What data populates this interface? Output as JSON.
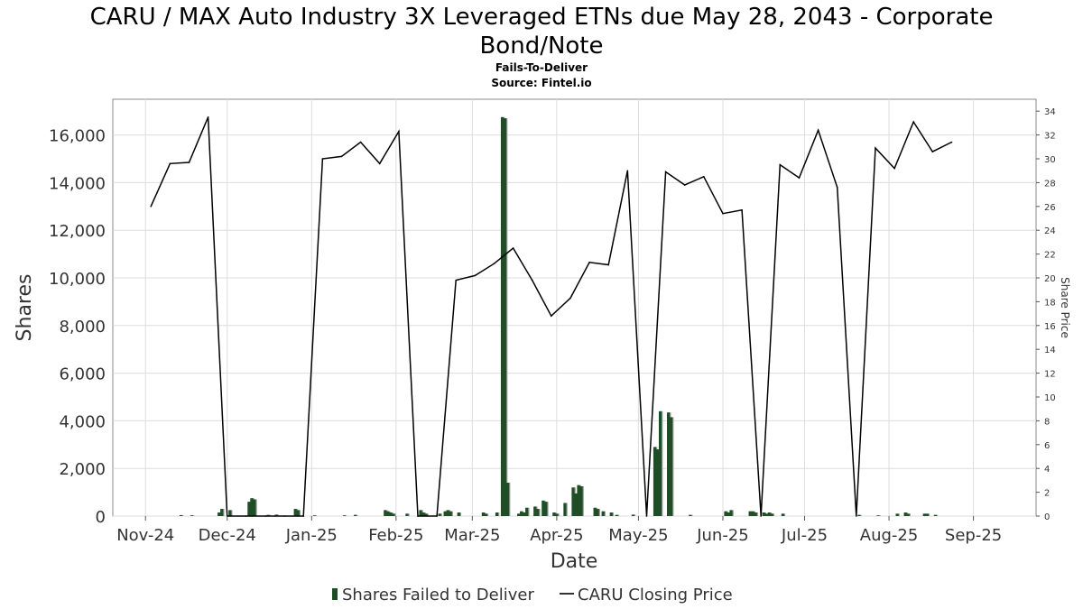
{
  "chart_data": {
    "type": "bar",
    "title_line1": "CARU / MAX Auto Industry 3X Leveraged ETNs due May 28, 2043 - Corporate",
    "title_line2": "Bond/Note",
    "subtitle": "Fails-To-Deliver",
    "source": "Source: Fintel.io",
    "xlabel": "Date",
    "ylabel_left": "Shares",
    "ylabel_right": "Share Price",
    "ylim_left": [
      0,
      17500
    ],
    "ylim_right": [
      0,
      35
    ],
    "xlim": [
      "2024-10-20",
      "2025-09-24"
    ],
    "grid": true,
    "legend_position": "bottom",
    "colors": {
      "bar": "#1e4d26",
      "bar_shadow": "#9a9a9a",
      "line": "#000000",
      "legend_bar": "#1e4d26"
    },
    "left_ticks": [
      {
        "value": 0,
        "label": "0"
      },
      {
        "value": 2000,
        "label": "2,000"
      },
      {
        "value": 4000,
        "label": "4,000"
      },
      {
        "value": 6000,
        "label": "6,000"
      },
      {
        "value": 8000,
        "label": "8,000"
      },
      {
        "value": 10000,
        "label": "10,000"
      },
      {
        "value": 12000,
        "label": "12,000"
      },
      {
        "value": 14000,
        "label": "14,000"
      },
      {
        "value": 16000,
        "label": "16,000"
      }
    ],
    "right_ticks": [
      {
        "value": 0,
        "label": "0"
      },
      {
        "value": 2,
        "label": "2"
      },
      {
        "value": 4,
        "label": "4"
      },
      {
        "value": 6,
        "label": "6"
      },
      {
        "value": 8,
        "label": "8"
      },
      {
        "value": 10,
        "label": "10"
      },
      {
        "value": 12,
        "label": "12"
      },
      {
        "value": 14,
        "label": "14"
      },
      {
        "value": 16,
        "label": "16"
      },
      {
        "value": 18,
        "label": "18"
      },
      {
        "value": 20,
        "label": "20"
      },
      {
        "value": 22,
        "label": "22"
      },
      {
        "value": 24,
        "label": "24"
      },
      {
        "value": 26,
        "label": "26"
      },
      {
        "value": 28,
        "label": "28"
      },
      {
        "value": 30,
        "label": "30"
      },
      {
        "value": 32,
        "label": "32"
      },
      {
        "value": 34,
        "label": "34"
      }
    ],
    "x_ticks": [
      {
        "date": "2024-11-01",
        "label": "Nov-24"
      },
      {
        "date": "2024-12-01",
        "label": "Dec-24"
      },
      {
        "date": "2025-01-01",
        "label": "Jan-25"
      },
      {
        "date": "2025-02-01",
        "label": "Feb-25"
      },
      {
        "date": "2025-03-01",
        "label": "Mar-25"
      },
      {
        "date": "2025-04-01",
        "label": "Apr-25"
      },
      {
        "date": "2025-05-01",
        "label": "May-25"
      },
      {
        "date": "2025-06-01",
        "label": "Jun-25"
      },
      {
        "date": "2025-07-01",
        "label": "Jul-25"
      },
      {
        "date": "2025-08-01",
        "label": "Aug-25"
      },
      {
        "date": "2025-09-01",
        "label": "Sep-25"
      }
    ],
    "series": [
      {
        "name": "Shares Failed to Deliver",
        "type": "bar",
        "points": [
          {
            "date": "2024-11-14",
            "value": 40
          },
          {
            "date": "2024-11-18",
            "value": 30
          },
          {
            "date": "2024-11-28",
            "value": 150
          },
          {
            "date": "2024-11-29",
            "value": 300
          },
          {
            "date": "2024-12-02",
            "value": 250
          },
          {
            "date": "2024-12-09",
            "value": 600
          },
          {
            "date": "2024-12-10",
            "value": 750
          },
          {
            "date": "2024-12-11",
            "value": 700
          },
          {
            "date": "2024-12-16",
            "value": 50
          },
          {
            "date": "2024-12-19",
            "value": 60
          },
          {
            "date": "2024-12-26",
            "value": 300
          },
          {
            "date": "2024-12-27",
            "value": 250
          },
          {
            "date": "2025-01-02",
            "value": 30
          },
          {
            "date": "2025-01-13",
            "value": 30
          },
          {
            "date": "2025-01-17",
            "value": 50
          },
          {
            "date": "2025-01-28",
            "value": 250
          },
          {
            "date": "2025-01-29",
            "value": 200
          },
          {
            "date": "2025-01-30",
            "value": 150
          },
          {
            "date": "2025-01-31",
            "value": 100
          },
          {
            "date": "2025-02-05",
            "value": 100
          },
          {
            "date": "2025-02-10",
            "value": 250
          },
          {
            "date": "2025-02-11",
            "value": 150
          },
          {
            "date": "2025-02-12",
            "value": 100
          },
          {
            "date": "2025-02-17",
            "value": 100
          },
          {
            "date": "2025-02-19",
            "value": 200
          },
          {
            "date": "2025-02-20",
            "value": 250
          },
          {
            "date": "2025-02-21",
            "value": 200
          },
          {
            "date": "2025-02-24",
            "value": 150
          },
          {
            "date": "2025-03-05",
            "value": 150
          },
          {
            "date": "2025-03-06",
            "value": 100
          },
          {
            "date": "2025-03-10",
            "value": 150
          },
          {
            "date": "2025-03-12",
            "value": 16750
          },
          {
            "date": "2025-03-13",
            "value": 16700
          },
          {
            "date": "2025-03-14",
            "value": 1400
          },
          {
            "date": "2025-03-18",
            "value": 100
          },
          {
            "date": "2025-03-19",
            "value": 200
          },
          {
            "date": "2025-03-20",
            "value": 150
          },
          {
            "date": "2025-03-21",
            "value": 350
          },
          {
            "date": "2025-03-24",
            "value": 400
          },
          {
            "date": "2025-03-25",
            "value": 300
          },
          {
            "date": "2025-03-27",
            "value": 650
          },
          {
            "date": "2025-03-28",
            "value": 600
          },
          {
            "date": "2025-03-31",
            "value": 150
          },
          {
            "date": "2025-04-01",
            "value": 100
          },
          {
            "date": "2025-04-04",
            "value": 550
          },
          {
            "date": "2025-04-07",
            "value": 1200
          },
          {
            "date": "2025-04-08",
            "value": 950
          },
          {
            "date": "2025-04-09",
            "value": 1300
          },
          {
            "date": "2025-04-10",
            "value": 1250
          },
          {
            "date": "2025-04-15",
            "value": 350
          },
          {
            "date": "2025-04-16",
            "value": 300
          },
          {
            "date": "2025-04-18",
            "value": 200
          },
          {
            "date": "2025-04-21",
            "value": 150
          },
          {
            "date": "2025-04-23",
            "value": 50
          },
          {
            "date": "2025-04-29",
            "value": 60
          },
          {
            "date": "2025-05-07",
            "value": 2900
          },
          {
            "date": "2025-05-08",
            "value": 2800
          },
          {
            "date": "2025-05-09",
            "value": 4400
          },
          {
            "date": "2025-05-12",
            "value": 4350
          },
          {
            "date": "2025-05-13",
            "value": 4150
          },
          {
            "date": "2025-05-20",
            "value": 50
          },
          {
            "date": "2025-06-02",
            "value": 200
          },
          {
            "date": "2025-06-03",
            "value": 150
          },
          {
            "date": "2025-06-04",
            "value": 250
          },
          {
            "date": "2025-06-11",
            "value": 200
          },
          {
            "date": "2025-06-12",
            "value": 200
          },
          {
            "date": "2025-06-13",
            "value": 150
          },
          {
            "date": "2025-06-16",
            "value": 150
          },
          {
            "date": "2025-06-17",
            "value": 100
          },
          {
            "date": "2025-06-18",
            "value": 150
          },
          {
            "date": "2025-06-19",
            "value": 100
          },
          {
            "date": "2025-06-23",
            "value": 100
          },
          {
            "date": "2025-07-21",
            "value": 50
          },
          {
            "date": "2025-07-28",
            "value": 30
          },
          {
            "date": "2025-08-04",
            "value": 100
          },
          {
            "date": "2025-08-07",
            "value": 150
          },
          {
            "date": "2025-08-08",
            "value": 100
          },
          {
            "date": "2025-08-14",
            "value": 100
          },
          {
            "date": "2025-08-15",
            "value": 100
          },
          {
            "date": "2025-08-18",
            "value": 50
          }
        ]
      },
      {
        "name": "CARU Closing Price",
        "type": "line",
        "points": [
          {
            "date": "2024-11-03",
            "value": 26.0
          },
          {
            "date": "2024-11-10",
            "value": 29.6
          },
          {
            "date": "2024-11-17",
            "value": 29.7
          },
          {
            "date": "2024-11-24",
            "value": 33.5
          },
          {
            "date": "2024-12-01",
            "value": 0.0
          },
          {
            "date": "2024-12-08",
            "value": 0.0
          },
          {
            "date": "2024-12-15",
            "value": 0.0
          },
          {
            "date": "2024-12-22",
            "value": 0.0
          },
          {
            "date": "2024-12-29",
            "value": 0.0
          },
          {
            "date": "2025-01-05",
            "value": 30.0
          },
          {
            "date": "2025-01-12",
            "value": 30.2
          },
          {
            "date": "2025-01-19",
            "value": 31.4
          },
          {
            "date": "2025-01-26",
            "value": 29.6
          },
          {
            "date": "2025-02-02",
            "value": 32.3
          },
          {
            "date": "2025-02-09",
            "value": 0.0
          },
          {
            "date": "2025-02-16",
            "value": 0.0
          },
          {
            "date": "2025-02-23",
            "value": 19.8
          },
          {
            "date": "2025-03-02",
            "value": 20.2
          },
          {
            "date": "2025-03-09",
            "value": 21.2
          },
          {
            "date": "2025-03-16",
            "value": 22.5
          },
          {
            "date": "2025-03-23",
            "value": 19.8
          },
          {
            "date": "2025-03-30",
            "value": 16.8
          },
          {
            "date": "2025-04-06",
            "value": 18.3
          },
          {
            "date": "2025-04-13",
            "value": 21.3
          },
          {
            "date": "2025-04-20",
            "value": 21.1
          },
          {
            "date": "2025-04-27",
            "value": 29.0
          },
          {
            "date": "2025-05-04",
            "value": 0.0
          },
          {
            "date": "2025-05-11",
            "value": 28.9
          },
          {
            "date": "2025-05-18",
            "value": 27.8
          },
          {
            "date": "2025-05-25",
            "value": 28.5
          },
          {
            "date": "2025-06-01",
            "value": 25.4
          },
          {
            "date": "2025-06-08",
            "value": 25.7
          },
          {
            "date": "2025-06-15",
            "value": 0.0
          },
          {
            "date": "2025-06-22",
            "value": 29.5
          },
          {
            "date": "2025-06-29",
            "value": 28.4
          },
          {
            "date": "2025-07-06",
            "value": 32.4
          },
          {
            "date": "2025-07-13",
            "value": 27.6
          },
          {
            "date": "2025-07-20",
            "value": 0.0
          },
          {
            "date": "2025-07-27",
            "value": 30.9
          },
          {
            "date": "2025-08-03",
            "value": 29.2
          },
          {
            "date": "2025-08-10",
            "value": 33.1
          },
          {
            "date": "2025-08-17",
            "value": 30.6
          },
          {
            "date": "2025-08-24",
            "value": 31.4
          }
        ]
      }
    ],
    "legend": {
      "bar_label": "Shares Failed to Deliver",
      "line_label": "CARU Closing Price"
    }
  }
}
